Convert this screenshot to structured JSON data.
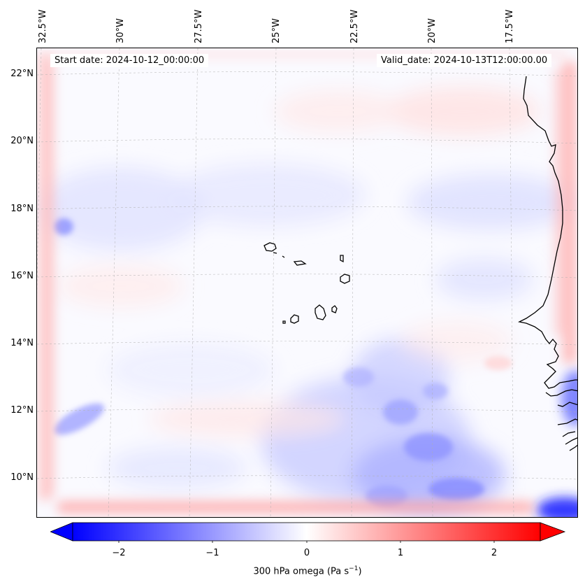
{
  "map": {
    "start_date": "Start date: 2024-10-12_00:00:00",
    "valid_date": "Valid_date: 2024-10-13T12:00:00.00",
    "longitude_labels": [
      "32.5°W",
      "30°W",
      "27.5°W",
      "25°W",
      "22.5°W",
      "20°W",
      "17.5°W"
    ],
    "latitude_labels": [
      "22°N",
      "20°N",
      "18°N",
      "16°N",
      "14°N",
      "12°N",
      "10°N"
    ],
    "field": "300 hPa omega",
    "colormap": [
      "#0000ff",
      "#ffffff",
      "#ff0000"
    ]
  },
  "colorbar": {
    "ticks": [
      "−2",
      "−1",
      "0",
      "1",
      "2"
    ],
    "tick_values": [
      -2,
      -1,
      0,
      1,
      2
    ],
    "range": [
      -2.75,
      2.75
    ],
    "label_prefix": "300 hPa omega (Pa s",
    "label_exp": "−1",
    "label_suffix": ")"
  }
}
